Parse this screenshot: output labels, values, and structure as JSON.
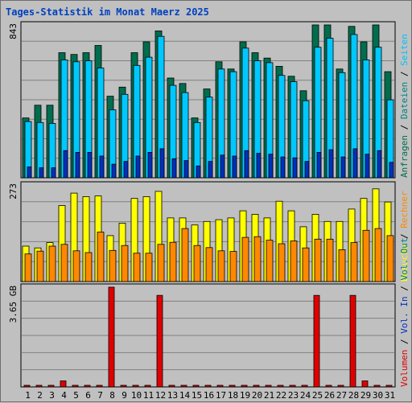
{
  "chart_data": {
    "type": "bar",
    "title": "Tages-Statistik im Monat Maerz 2025",
    "categories": [
      "1",
      "2",
      "3",
      "4",
      "5",
      "6",
      "7",
      "8",
      "9",
      "10",
      "11",
      "12",
      "13",
      "14",
      "15",
      "16",
      "17",
      "18",
      "19",
      "20",
      "21",
      "22",
      "23",
      "24",
      "25",
      "26",
      "27",
      "28",
      "29",
      "30",
      "31"
    ],
    "weekend_days": [
      "1",
      "2",
      "8",
      "9",
      "15",
      "16",
      "22",
      "23",
      "29",
      "30"
    ],
    "colors": {
      "anfragen": "#006d4e",
      "dateien": "#00c8ff",
      "seiten": "#0030c0",
      "besuche": "#ffff00",
      "rechner": "#ff8800",
      "volumen": "#e00000",
      "vol_in": "#0030c0",
      "vol_out": "#008080",
      "title": "#0040c0",
      "weekend": "#008040",
      "grid": "#808080",
      "plot_bg": "#c0c0c0"
    },
    "panels": [
      {
        "id": "top",
        "ymax_label": "843",
        "ymax": 843,
        "legend": [
          {
            "text": "Anfragen",
            "color": "#006d4e"
          },
          {
            "text": "Dateien",
            "color": "#008080"
          },
          {
            "text": "Seiten",
            "color": "#00c0ff"
          }
        ],
        "series": [
          {
            "name": "Anfragen",
            "values": [
              330,
              400,
              400,
              690,
              680,
              690,
              730,
              450,
              500,
              690,
              750,
              810,
              550,
              520,
              330,
              490,
              640,
              600,
              750,
              690,
              660,
              615,
              560,
              480,
              843,
              843,
              600,
              835,
              750,
              843,
              585
            ]
          },
          {
            "name": "Dateien",
            "values": [
              310,
              305,
              300,
              650,
              640,
              645,
              605,
              375,
              460,
              620,
              665,
              780,
              510,
              470,
              305,
              445,
              600,
              585,
              715,
              645,
              635,
              565,
              530,
              425,
              720,
              770,
              580,
              790,
              650,
              720,
              430
            ]
          },
          {
            "name": "Seiten",
            "values": [
              60,
              55,
              55,
              150,
              140,
              140,
              120,
              75,
              90,
              120,
              140,
              160,
              105,
              95,
              65,
              90,
              125,
              120,
              150,
              135,
              130,
              115,
              110,
              90,
              140,
              155,
              115,
              160,
              130,
              150,
              85
            ]
          }
        ]
      },
      {
        "id": "middle",
        "ymax_label": "273",
        "ymax": 273,
        "legend": [
          {
            "text": "Besuche",
            "color": "#ffff00"
          },
          {
            "text": "Rechner",
            "color": "#ff8800"
          }
        ],
        "series": [
          {
            "name": "Besuche",
            "values": [
              100,
              95,
              110,
              215,
              250,
              240,
              242,
              130,
              165,
              235,
              240,
              255,
              180,
              180,
              160,
              170,
              175,
              180,
              200,
              190,
              180,
              227,
              200,
              155,
              190,
              170,
              170,
              205,
              235,
              262,
              225
            ]
          },
          {
            "name": "Rechner",
            "values": [
              78,
              86,
              100,
              105,
              87,
              82,
              140,
              88,
              102,
              80,
              80,
              105,
              111,
              150,
              102,
              96,
              87,
              85,
              125,
              127,
              117,
              107,
              115,
              95,
              120,
              120,
              90,
              110,
              145,
              150,
              130
            ]
          }
        ]
      },
      {
        "id": "bottom",
        "ymax_label": "3.65 GB",
        "ymax": 3.65,
        "legend": [
          {
            "text": "Volumen",
            "color": "#e00000"
          },
          {
            "text": "Vol. In",
            "color": "#0030c0"
          },
          {
            "text": "Vol. Out",
            "color": "#008080"
          }
        ],
        "series": [
          {
            "name": "Volumen",
            "values": [
              0.02,
              0.02,
              0.02,
              0.22,
              0.02,
              0.02,
              0.02,
              3.65,
              0.02,
              0.02,
              0.02,
              3.35,
              0.02,
              0.02,
              0.02,
              0.02,
              0.02,
              0.02,
              0.02,
              0.02,
              0.02,
              0.02,
              0.02,
              0.02,
              3.35,
              0.02,
              0.02,
              3.35,
              0.22,
              0.02,
              0.02
            ]
          }
        ]
      }
    ]
  }
}
